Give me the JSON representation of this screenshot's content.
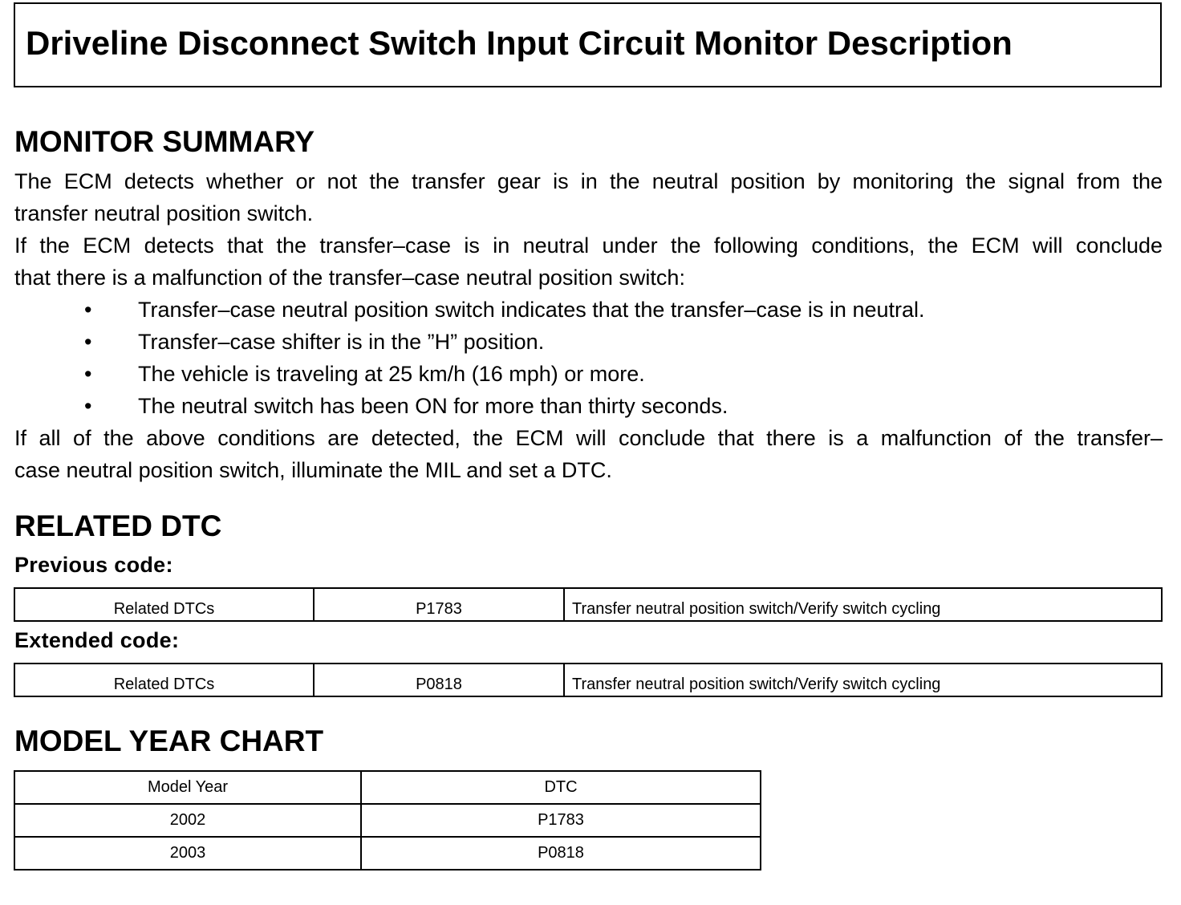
{
  "title": "Driveline Disconnect Switch Input Circuit Monitor Description",
  "monitor_summary": {
    "heading": "MONITOR SUMMARY",
    "para1_lines": [
      "The ECM detects whether or not the transfer gear is in the neutral position by monitoring the signal from the",
      "transfer neutral position switch."
    ],
    "para2_lines": [
      "If the ECM detects that the transfer–case is in neutral under the following conditions, the ECM will conclude",
      "that there is a malfunction of the transfer–case neutral position switch:"
    ],
    "bullets": [
      "Transfer–case neutral position switch indicates that the transfer–case is in neutral.",
      "Transfer–case shifter is in the ”H” position.",
      "The vehicle is traveling at 25 km/h (16 mph) or more.",
      "The neutral switch has been ON for more than thirty seconds."
    ],
    "bullet_char": "•",
    "para3_lines": [
      "If all of the above conditions are detected, the ECM will conclude that there is a malfunction of the transfer–",
      "case neutral position switch, illuminate the MIL and set a DTC."
    ]
  },
  "related_dtc": {
    "heading": "RELATED DTC",
    "previous": {
      "label": "Previous code:",
      "row": [
        "Related DTCs",
        "P1783",
        "Transfer neutral position switch/Verify switch cycling"
      ]
    },
    "extended": {
      "label": "Extended code:",
      "row": [
        "Related DTCs",
        "P0818",
        "Transfer neutral position switch/Verify switch cycling"
      ]
    }
  },
  "model_year_chart": {
    "heading": "MODEL YEAR CHART",
    "headers": [
      "Model Year",
      "DTC"
    ],
    "rows": [
      [
        "2002",
        "P1783"
      ],
      [
        "2003",
        "P0818"
      ]
    ]
  }
}
